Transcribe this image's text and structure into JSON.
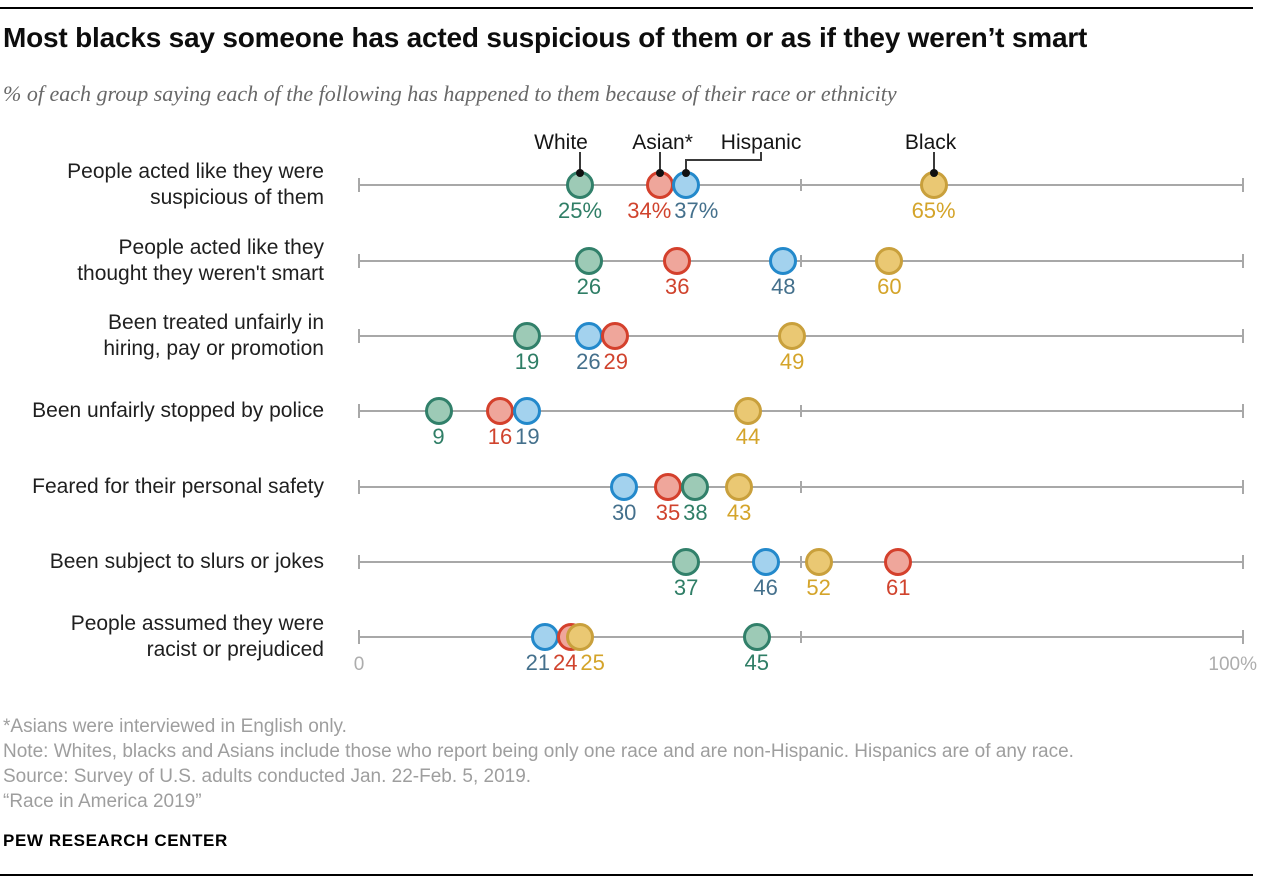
{
  "title": "Most blacks say someone has acted suspicious of them or as if they weren’t smart",
  "subtitle": "% of each group saying each of the following has happened to them because of their race or ethnicity",
  "legend": {
    "items": [
      {
        "label": "White",
        "series": "White"
      },
      {
        "label": "Asian*",
        "series": "Asian*"
      },
      {
        "label": "Hispanic",
        "series": "Hispanic"
      },
      {
        "label": "Black",
        "series": "Black"
      }
    ]
  },
  "colors": {
    "White": {
      "fill": "#9dcab6",
      "stroke": "#31806a",
      "label": "#2f7e66"
    },
    "Asian*": {
      "fill": "#efa69b",
      "stroke": "#d4402c",
      "label": "#d0432d"
    },
    "Hispanic": {
      "fill": "#a3d2ee",
      "stroke": "#2389cb",
      "label": "#44708c"
    },
    "Black": {
      "fill": "#eac873",
      "stroke": "#c9a03c",
      "label": "#d4a42a"
    },
    "axis": "#a8a8a8",
    "axis_text": "#adadad",
    "note_text": "#9e9e9e",
    "connector": "#111111"
  },
  "chart_data": {
    "type": "scatter",
    "title": "Most blacks say someone has acted suspicious of them or as if they weren’t smart",
    "subtitle": "% of each group saying each of the following has happened to them because of their race or ethnicity",
    "categories": [
      "People acted like they were suspicious of them",
      "People acted like they thought they weren't smart",
      "Been treated unfairly in hiring, pay or promotion",
      "Been unfairly stopped by police",
      "Feared for their personal safety",
      "Been subject to slurs or jokes",
      "People assumed they were racist or prejudiced"
    ],
    "categories_lines": [
      [
        "People acted like they were",
        "suspicious of them"
      ],
      [
        "People acted like they",
        "thought they weren't smart"
      ],
      [
        "Been treated unfairly in",
        "hiring, pay or promotion"
      ],
      [
        "Been unfairly stopped by police"
      ],
      [
        "Feared for their personal safety"
      ],
      [
        "Been subject to slurs or jokes"
      ],
      [
        "People assumed they were",
        "racist or prejudiced"
      ]
    ],
    "series": [
      {
        "name": "White",
        "values": [
          25,
          26,
          19,
          9,
          38,
          37,
          45
        ]
      },
      {
        "name": "Asian*",
        "values": [
          34,
          36,
          29,
          16,
          35,
          61,
          24
        ]
      },
      {
        "name": "Hispanic",
        "values": [
          37,
          48,
          26,
          19,
          30,
          46,
          21
        ]
      },
      {
        "name": "Black",
        "values": [
          65,
          60,
          49,
          44,
          43,
          52,
          25
        ]
      }
    ],
    "xlim": [
      0,
      100
    ],
    "x_axis_labels": [
      "0",
      "100%"
    ],
    "mid_tick": 50,
    "first_row_value_suffix": "%",
    "legend_position": "top",
    "grid": false
  },
  "notes": [
    "*Asians were interviewed in English only.",
    "Note: Whites, blacks and Asians include those who report being only one race and are non-Hispanic. Hispanics are of any race.",
    "Source: Survey of U.S. adults conducted Jan. 22-Feb. 5, 2019.",
    "“Race in America 2019”"
  ],
  "footer": "PEW RESEARCH CENTER"
}
